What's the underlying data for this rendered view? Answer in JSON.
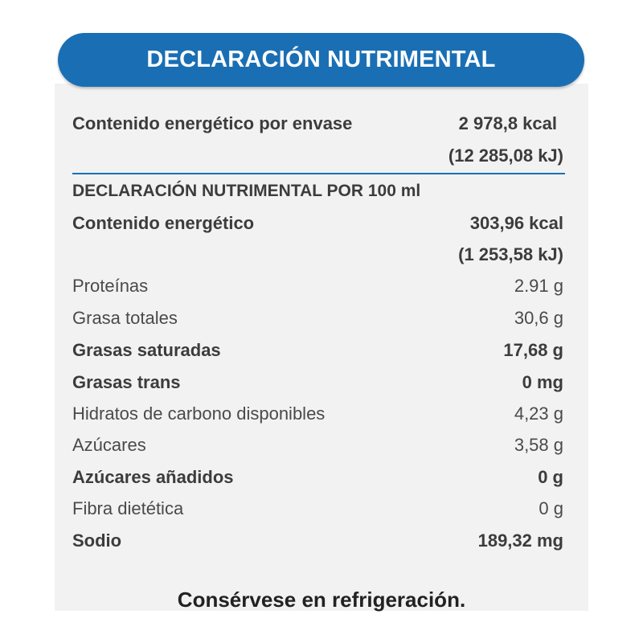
{
  "header": {
    "title": "DECLARACIÓN NUTRIMENTAL"
  },
  "envase": {
    "label": "Contenido energético por envase",
    "kcal": "2 978,8 kcal",
    "kj": "(12 285,08 kJ)"
  },
  "section": {
    "heading": "DECLARACIÓN NUTRIMENTAL POR 100 ml"
  },
  "energia": {
    "label": "Contenido energético",
    "kcal": "303,96 kcal",
    "kj": "(1 253,58 kJ)"
  },
  "rows": [
    {
      "label": "Proteínas",
      "value": "2.91 g",
      "bold": false
    },
    {
      "label": "Grasa totales",
      "value": "30,6 g",
      "bold": false
    },
    {
      "label": "Grasas saturadas",
      "value": "17,68 g",
      "bold": true
    },
    {
      "label": "Grasas trans",
      "value": "0 mg",
      "bold": true
    },
    {
      "label": "Hidratos de carbono disponibles",
      "value": "4,23 g",
      "bold": false
    },
    {
      "label": "Azúcares",
      "value": "3,58 g",
      "bold": false
    },
    {
      "label": "Azúcares añadidos",
      "value": "0 g",
      "bold": true
    },
    {
      "label": "Fibra dietética",
      "value": "0 g",
      "bold": false
    },
    {
      "label": "Sodio",
      "value": "189,32 mg",
      "bold": true
    }
  ],
  "footer": {
    "text": "Consérvese en refrigeración."
  },
  "colors": {
    "header_background": "#1a6fb4",
    "divider": "#1a6fb4",
    "panel_background": "#f2f2f2"
  }
}
